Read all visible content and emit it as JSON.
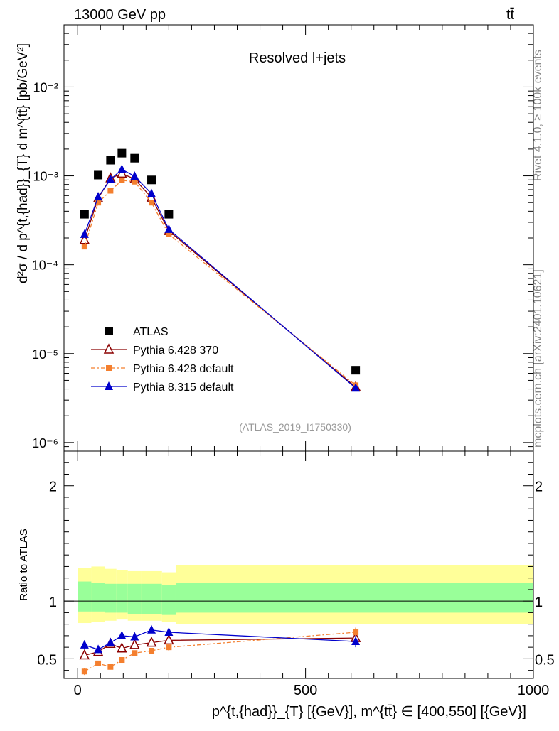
{
  "header": {
    "left": "13000 GeV pp",
    "right": "tt̄"
  },
  "side_labels": {
    "rivet": "Rivet 4.1.0, ≥ 100k events",
    "mcplots": "mcplots.cern.ch [arXiv:2401.10621]"
  },
  "chart_data": [
    {
      "type": "scatter",
      "panel": "main",
      "title": "Resolved l+jets",
      "watermark": "(ATLAS_2019_I1750330)",
      "ylabel": "d²σ / d p^{t,{had}}_{T} d m^{tt̄} [pb/GeV²]",
      "yscale": "log",
      "ylim": [
        8e-07,
        0.05
      ],
      "xlim": [
        -30,
        1000
      ],
      "ytick_labels": [
        "10⁻²",
        "10⁻³",
        "10⁻⁴",
        "10⁻⁵",
        "10⁻⁶"
      ],
      "ytick_values": [
        0.01,
        0.001,
        0.0001,
        1e-05,
        1e-06
      ],
      "x": [
        15,
        45,
        72,
        97,
        125,
        162,
        200,
        610
      ],
      "series": [
        {
          "name": "ATLAS",
          "marker": "square",
          "color": "#000000",
          "values": [
            0.00037,
            0.00102,
            0.0015,
            0.0018,
            0.00158,
            0.0009,
            0.00037,
            6.5e-06
          ]
        },
        {
          "name": "Pythia 6.428 370",
          "marker": "triangle-open",
          "color": "#8b0000",
          "values": [
            0.00019,
            0.00056,
            0.00094,
            0.00106,
            0.00092,
            0.00057,
            0.00024,
            4.2e-06
          ]
        },
        {
          "name": "Pythia 6.428 default",
          "marker": "square-small",
          "color": "#f47f2e",
          "values": [
            0.00016,
            0.0005,
            0.00068,
            0.00089,
            0.00086,
            0.0005,
            0.00022,
            4.4e-06
          ]
        },
        {
          "name": "Pythia 8.315 default",
          "marker": "triangle",
          "color": "#0000cc",
          "values": [
            0.00022,
            0.00058,
            0.00091,
            0.00118,
            0.00099,
            0.00063,
            0.00025,
            4.1e-06
          ]
        }
      ]
    },
    {
      "type": "line",
      "panel": "ratio",
      "ylabel": "Ratio to ATLAS",
      "ylim": [
        0.33,
        2.3
      ],
      "xlim": [
        -30,
        1000
      ],
      "ytick_labels": [
        "2",
        "1",
        "0.5"
      ],
      "ytick_values": [
        2,
        1,
        0.5
      ],
      "xtick_labels": [
        "0",
        "500",
        "1000"
      ],
      "xtick_values": [
        0,
        500,
        1000
      ],
      "xlabel": "p^{t,{had}}_{T} [{GeV}], m^{tt̄} ∈ [400,550] [{GeV}]",
      "x": [
        15,
        45,
        72,
        97,
        125,
        162,
        200,
        610
      ],
      "bands": {
        "edges": [
          0,
          30,
          60,
          85,
          110,
          140,
          185,
          215,
          1000
        ],
        "yellow_lo": [
          0.81,
          0.82,
          0.83,
          0.84,
          0.83,
          0.83,
          0.82,
          0.8
        ],
        "yellow_hi": [
          1.29,
          1.3,
          1.28,
          1.27,
          1.26,
          1.26,
          1.25,
          1.31
        ],
        "green_lo": [
          0.91,
          0.91,
          0.9,
          0.9,
          0.89,
          0.89,
          0.88,
          0.9
        ],
        "green_hi": [
          1.17,
          1.16,
          1.15,
          1.15,
          1.15,
          1.15,
          1.14,
          1.16
        ]
      },
      "series": [
        {
          "name": "Pythia 6.428 370",
          "color": "#8b0000",
          "values": [
            0.53,
            0.56,
            0.63,
            0.59,
            0.62,
            0.64,
            0.66,
            0.68
          ],
          "errors": [
            0.03,
            0.03,
            0.02,
            0.02,
            0.02,
            0.02,
            0.03,
            0.03
          ]
        },
        {
          "name": "Pythia 6.428 default",
          "color": "#f47f2e",
          "values": [
            0.39,
            0.46,
            0.43,
            0.49,
            0.55,
            0.57,
            0.6,
            0.73
          ],
          "errors": [
            0.03,
            0.02,
            0.02,
            0.02,
            0.02,
            0.02,
            0.03,
            0.04
          ]
        },
        {
          "name": "Pythia 8.315 default",
          "color": "#0000cc",
          "values": [
            0.62,
            0.58,
            0.64,
            0.7,
            0.69,
            0.75,
            0.73,
            0.65
          ],
          "errors": [
            0.04,
            0.03,
            0.03,
            0.02,
            0.02,
            0.02,
            0.03,
            0.05
          ]
        }
      ]
    }
  ]
}
